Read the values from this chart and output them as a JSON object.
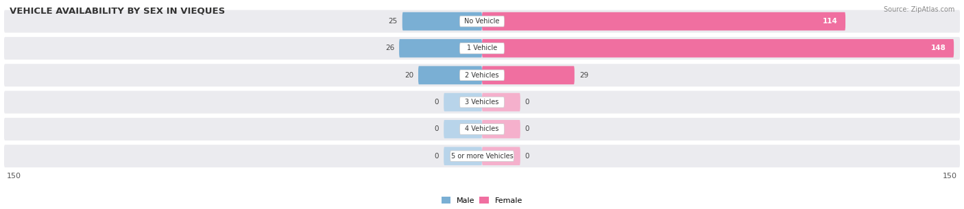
{
  "title": "VEHICLE AVAILABILITY BY SEX IN VIEQUES",
  "source": "Source: ZipAtlas.com",
  "categories": [
    "No Vehicle",
    "1 Vehicle",
    "2 Vehicles",
    "3 Vehicles",
    "4 Vehicles",
    "5 or more Vehicles"
  ],
  "male_values": [
    25,
    26,
    20,
    0,
    0,
    0
  ],
  "female_values": [
    114,
    148,
    29,
    0,
    0,
    0
  ],
  "male_color": "#7aafd4",
  "female_color": "#f06fa0",
  "male_color_zero": "#b8d4ea",
  "female_color_zero": "#f5b0cc",
  "axis_max": 150,
  "row_bg_color": "#ebebef",
  "label_fontsize": 7.5,
  "title_fontsize": 9.5,
  "background_color": "#ffffff",
  "zero_stub": 12
}
